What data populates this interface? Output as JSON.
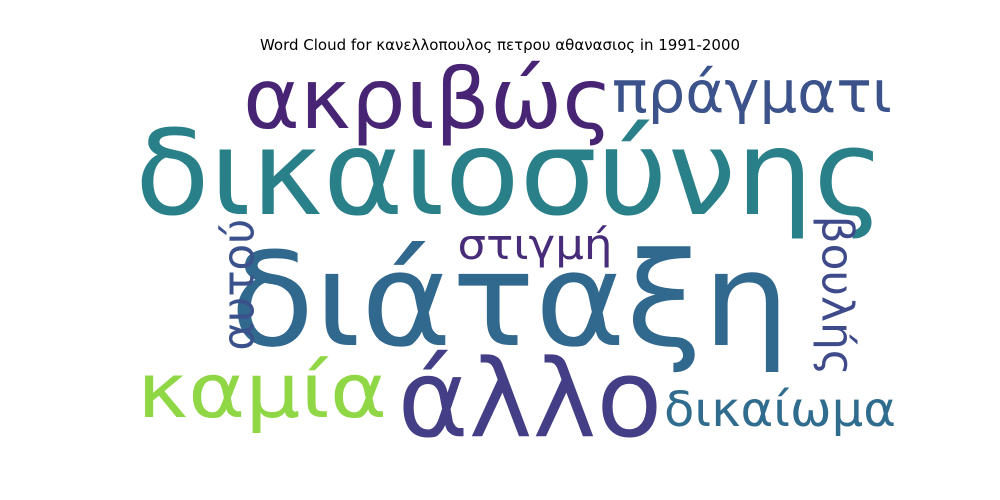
{
  "chart_data": {
    "type": "wordcloud",
    "title": "Word Cloud for κανελλοπουλος πετρου αθανασιος in 1991-2000",
    "words": [
      {
        "text": "δικαιοσύνης",
        "color": "#2a8089"
      },
      {
        "text": "διάταξη",
        "color": "#31688e"
      },
      {
        "text": "ακριβώς",
        "color": "#482475"
      },
      {
        "text": "πράγματι",
        "color": "#3b528b"
      },
      {
        "text": "άλλο",
        "color": "#433e85"
      },
      {
        "text": "καμία",
        "color": "#8fd744"
      },
      {
        "text": "στιγμή",
        "color": "#472c7a"
      },
      {
        "text": "αυτού",
        "color": "#3b518b"
      },
      {
        "text": "βουλής",
        "color": "#3e4a89"
      },
      {
        "text": "δικαίωμα",
        "color": "#2f6c8e"
      }
    ]
  }
}
